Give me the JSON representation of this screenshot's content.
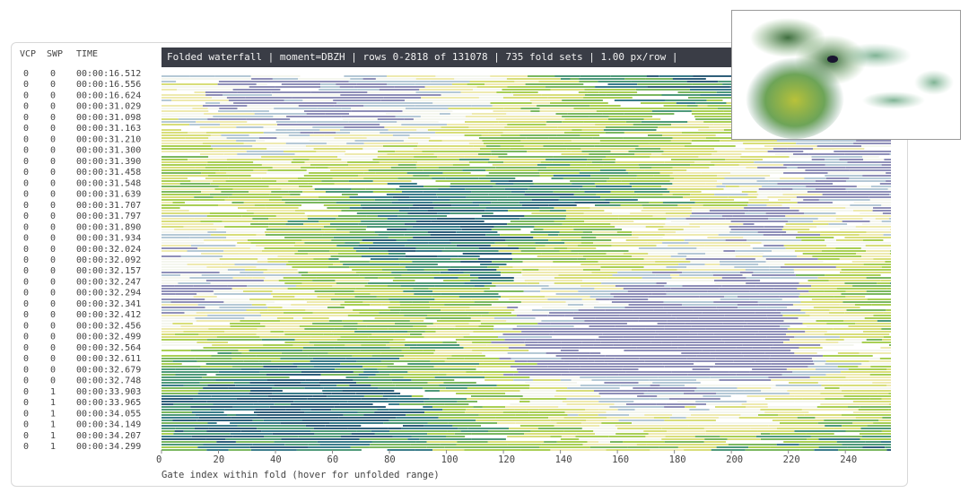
{
  "columns": [
    "VCP",
    "SWP",
    "TIME"
  ],
  "rows": [
    [
      0,
      0,
      "00:00:16.512"
    ],
    [
      0,
      0,
      "00:00:16.556"
    ],
    [
      0,
      0,
      "00:00:16.624"
    ],
    [
      0,
      0,
      "00:00:31.029"
    ],
    [
      0,
      0,
      "00:00:31.098"
    ],
    [
      0,
      0,
      "00:00:31.163"
    ],
    [
      0,
      0,
      "00:00:31.210"
    ],
    [
      0,
      0,
      "00:00:31.300"
    ],
    [
      0,
      0,
      "00:00:31.390"
    ],
    [
      0,
      0,
      "00:00:31.458"
    ],
    [
      0,
      0,
      "00:00:31.548"
    ],
    [
      0,
      0,
      "00:00:31.639"
    ],
    [
      0,
      0,
      "00:00:31.707"
    ],
    [
      0,
      0,
      "00:00:31.797"
    ],
    [
      0,
      0,
      "00:00:31.890"
    ],
    [
      0,
      0,
      "00:00:31.934"
    ],
    [
      0,
      0,
      "00:00:32.024"
    ],
    [
      0,
      0,
      "00:00:32.092"
    ],
    [
      0,
      0,
      "00:00:32.157"
    ],
    [
      0,
      0,
      "00:00:32.247"
    ],
    [
      0,
      0,
      "00:00:32.294"
    ],
    [
      0,
      0,
      "00:00:32.341"
    ],
    [
      0,
      0,
      "00:00:32.412"
    ],
    [
      0,
      0,
      "00:00:32.456"
    ],
    [
      0,
      0,
      "00:00:32.499"
    ],
    [
      0,
      0,
      "00:00:32.564"
    ],
    [
      0,
      0,
      "00:00:32.611"
    ],
    [
      0,
      0,
      "00:00:32.679"
    ],
    [
      0,
      0,
      "00:00:32.748"
    ],
    [
      0,
      1,
      "00:00:33.903"
    ],
    [
      0,
      1,
      "00:00:33.965"
    ],
    [
      0,
      1,
      "00:00:34.055"
    ],
    [
      0,
      1,
      "00:00:34.149"
    ],
    [
      0,
      1,
      "00:00:34.207"
    ],
    [
      0,
      1,
      "00:00:34.299"
    ]
  ],
  "title_bar": "Folded waterfall | moment=DBZH | rows 0-2818 of 131078 | 735 fold sets | 1.00 px/row |",
  "x_axis": {
    "label": "Gate index within fold (hover for unfolded range)",
    "lim": [
      0,
      256
    ],
    "ticks": [
      0,
      20,
      40,
      60,
      80,
      100,
      120,
      140,
      160,
      180,
      200,
      220,
      240
    ]
  }
}
